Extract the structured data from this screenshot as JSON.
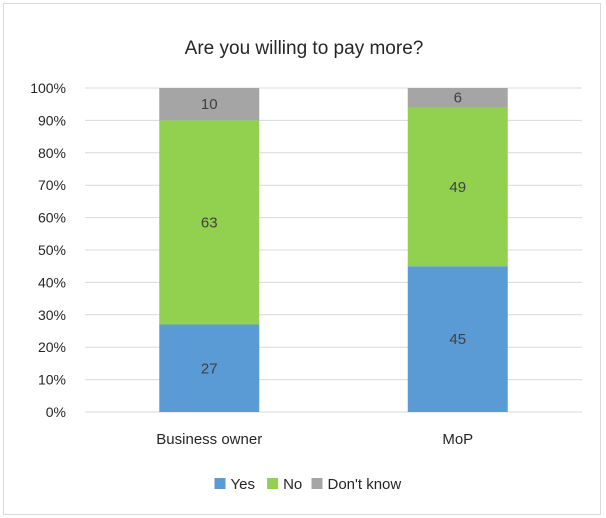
{
  "chart_data": {
    "type": "bar",
    "stacked": true,
    "percent": true,
    "title": "Are you willing to pay more?",
    "xlabel": "",
    "ylabel": "",
    "categories": [
      "Business owner",
      "MoP"
    ],
    "series": [
      {
        "name": "Yes",
        "values": [
          27,
          45
        ],
        "color": "#5b9bd5"
      },
      {
        "name": "No",
        "values": [
          63,
          49
        ],
        "color": "#92d050"
      },
      {
        "name": "Don't know",
        "values": [
          10,
          6
        ],
        "color": "#a5a5a5"
      }
    ],
    "ylim": [
      0,
      100
    ],
    "yticks": [
      "0%",
      "10%",
      "20%",
      "30%",
      "40%",
      "50%",
      "60%",
      "70%",
      "80%",
      "90%",
      "100%"
    ],
    "grid": true,
    "legend_position": "bottom"
  }
}
